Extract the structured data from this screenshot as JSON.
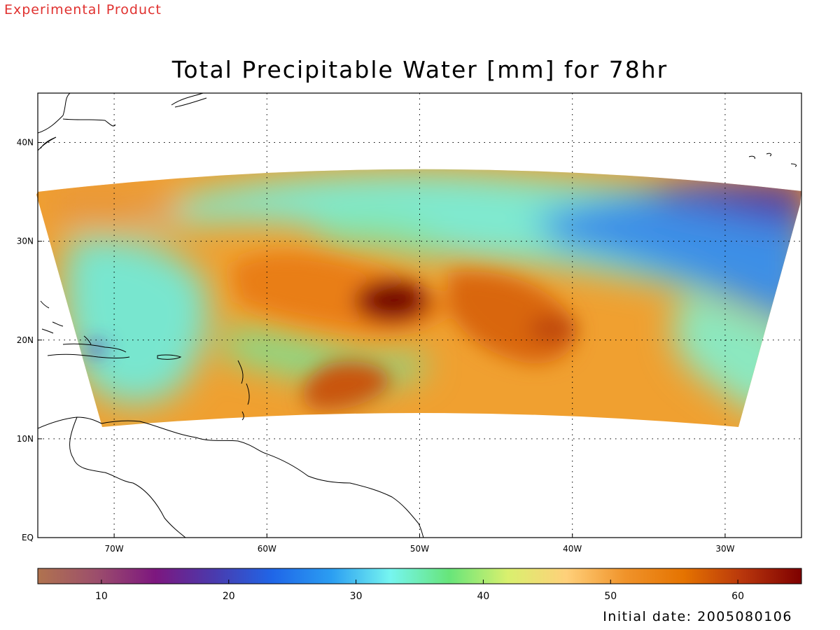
{
  "header": {
    "stamp": "Experimental Product",
    "stamp_color": "#e0312f",
    "title": "Total Precipitable Water [mm] for 78hr"
  },
  "map": {
    "projection": "cylindrical lat-lon",
    "lon_range": [
      "75W",
      "25W"
    ],
    "lat_range": [
      "EQ",
      "45N"
    ],
    "lat_ticks": [
      "EQ",
      "10N",
      "20N",
      "30N",
      "40N"
    ],
    "lon_ticks": [
      "70W",
      "60W",
      "50W",
      "40W",
      "30W"
    ],
    "grid": "dotted",
    "features": [
      "coastlines",
      "forecast domain swath",
      "tropical cyclone near 23N 52W"
    ]
  },
  "colorbar": {
    "min": 5,
    "max": 65,
    "ticks": [
      "10",
      "20",
      "30",
      "40",
      "50",
      "60"
    ],
    "colors": [
      "#b0734f",
      "#9c4e6c",
      "#7d177f",
      "#4a3aad",
      "#1f66e8",
      "#2b9ef2",
      "#76f5f0",
      "#67e57a",
      "#d9f06e",
      "#ffd07a",
      "#f0932a",
      "#e57300",
      "#b8360c",
      "#7e0000"
    ]
  },
  "footer": {
    "initial_date": "Initial date: 2005080106"
  }
}
